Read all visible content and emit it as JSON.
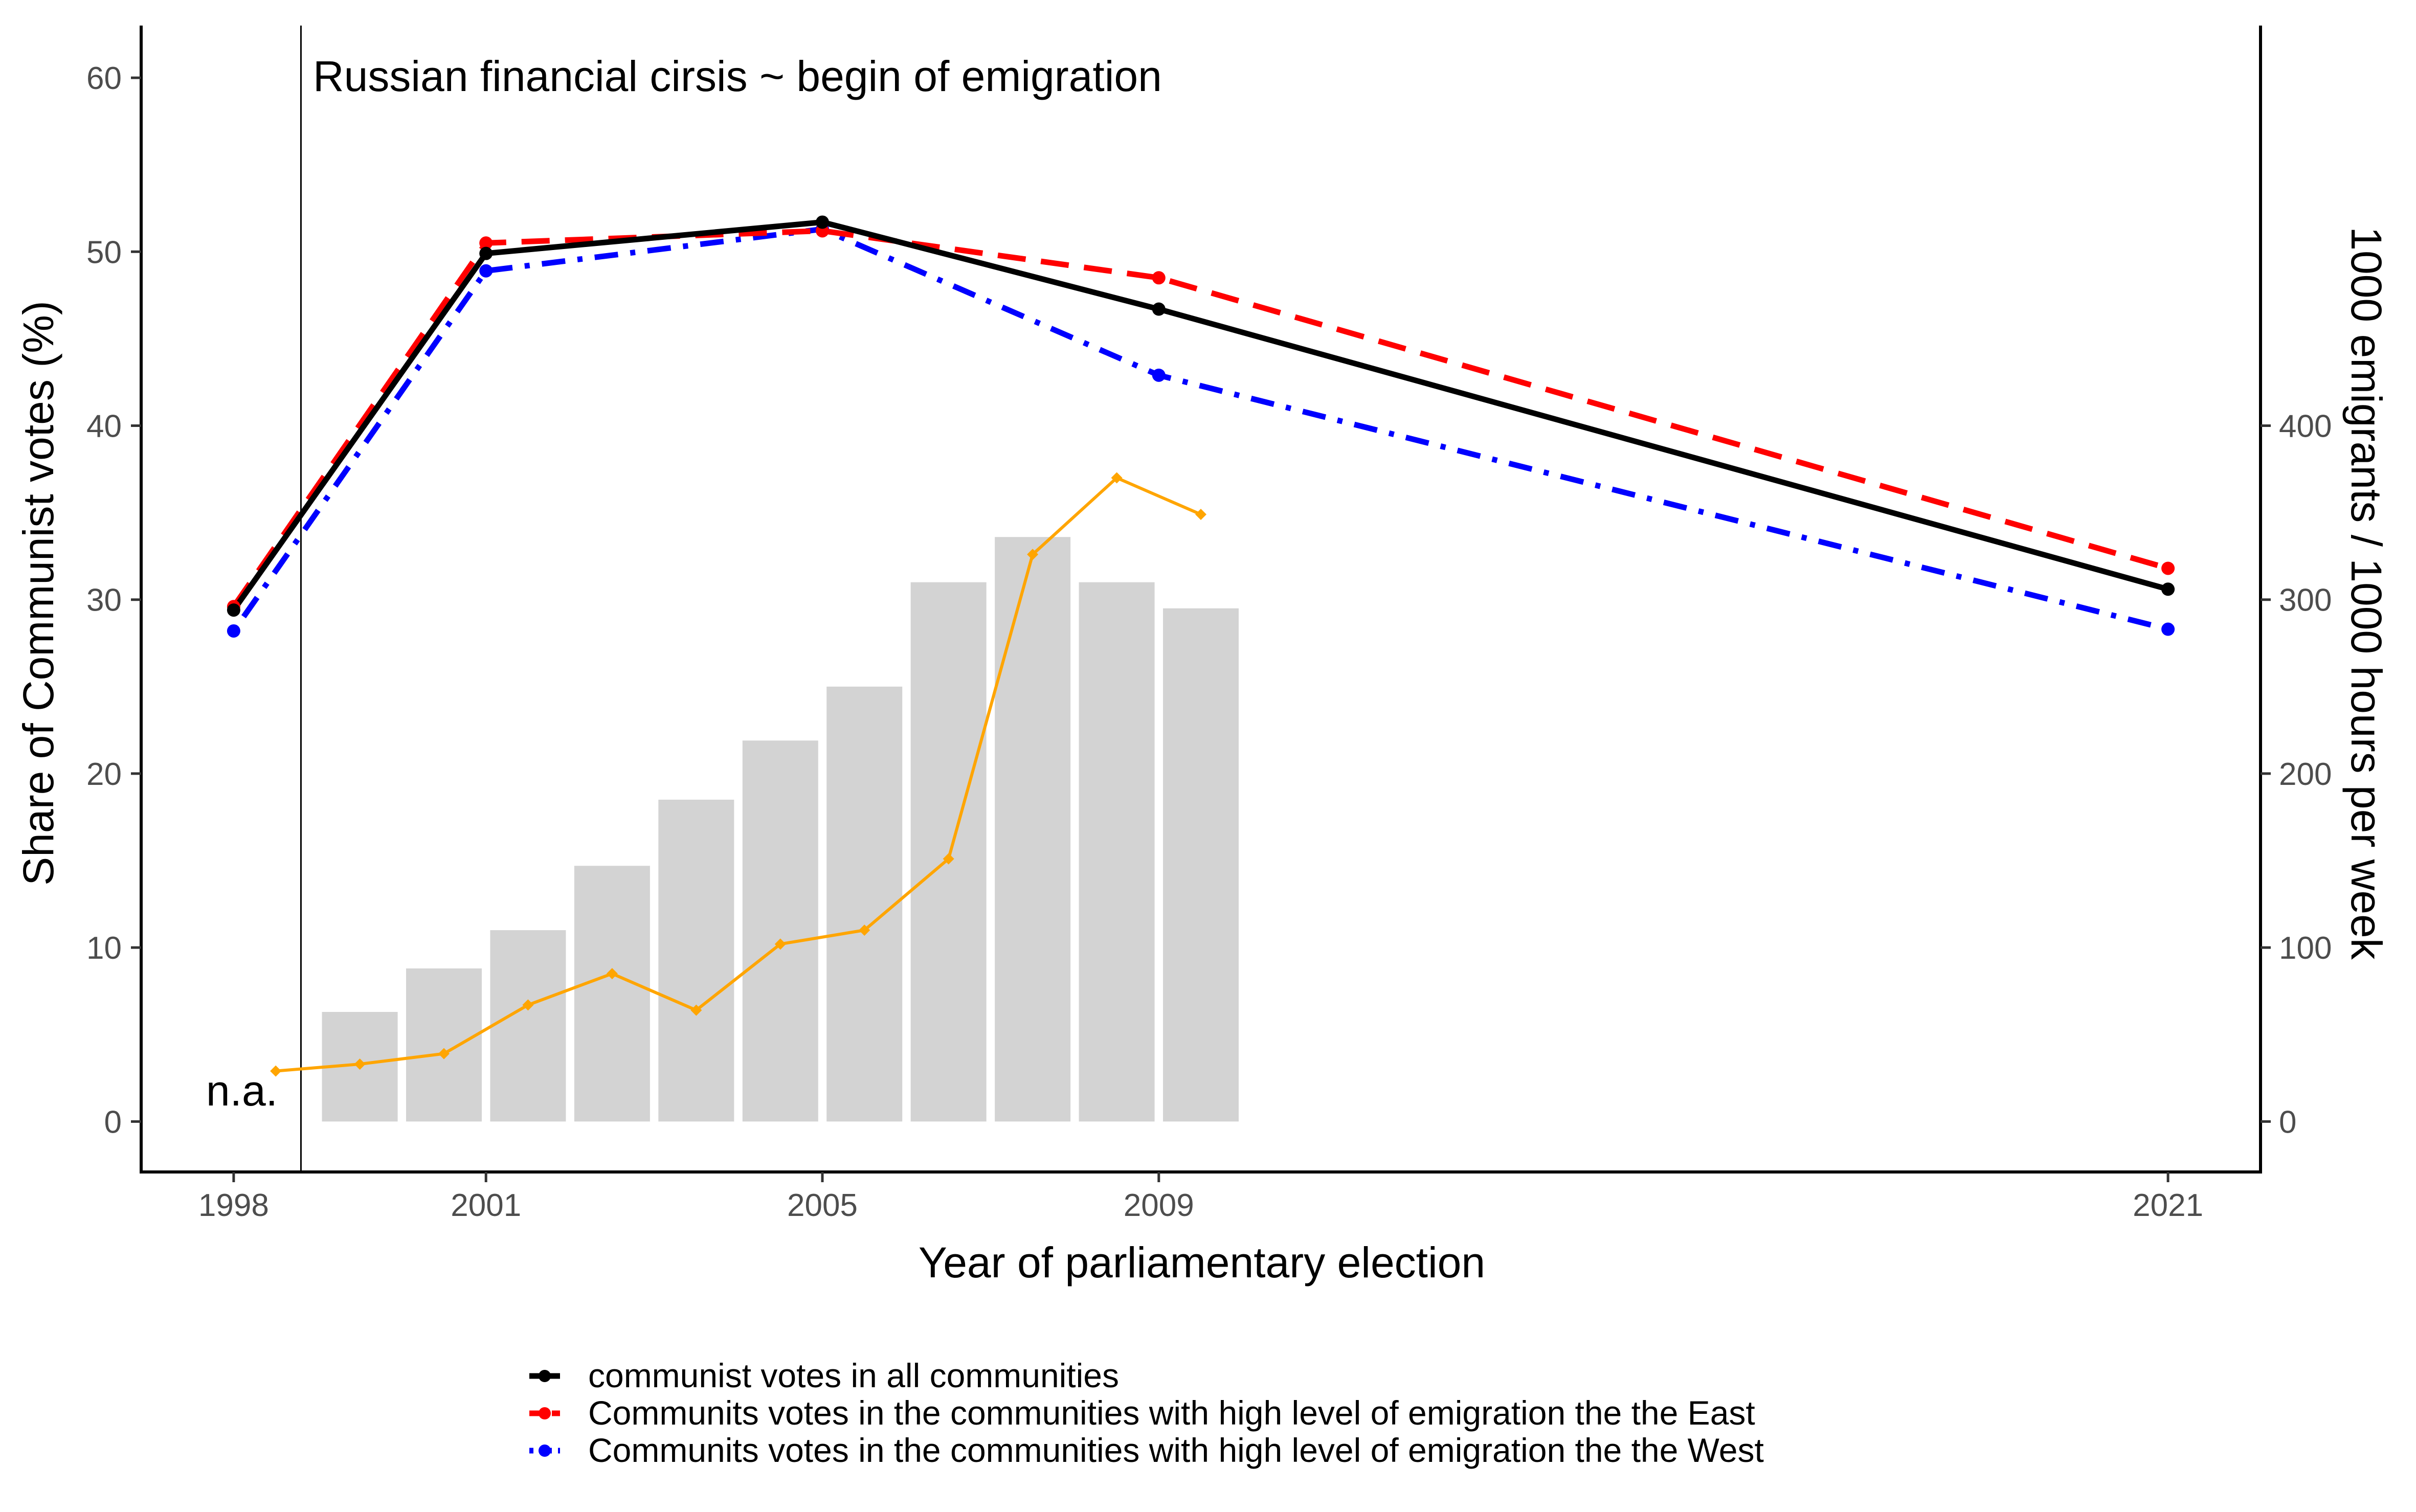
{
  "chart_data": {
    "type": "line",
    "xlabel": "Year of parliamentary election",
    "ylabel": "Share of Communist votes (%)",
    "y2label": "1000 emigrants / 1000 hours per week",
    "x_ticks": [
      "1998",
      "2001",
      "2005",
      "2009",
      "2021"
    ],
    "y_ticks": [
      "0",
      "10",
      "20",
      "30",
      "40",
      "50",
      "60"
    ],
    "y2_ticks": [
      "0",
      "100",
      "200",
      "300",
      "400"
    ],
    "xlim": [
      1996.9,
      2022.1
    ],
    "ylim": [
      -2.9,
      63
    ],
    "y2lim": [
      -29,
      630
    ],
    "grid": false,
    "legend_position": "bottom",
    "series": [
      {
        "name": "communist votes in all communities",
        "style": "solid",
        "color": "#000000",
        "x": [
          1998,
          2001,
          2005,
          2009,
          2021
        ],
        "values": [
          29.4,
          49.9,
          51.7,
          46.7,
          30.6
        ]
      },
      {
        "name": "Communits votes in the communities with high level of emigration the the East",
        "style": "dashed",
        "color": "#ff0000",
        "x": [
          1998,
          2001,
          2005,
          2009,
          2021
        ],
        "values": [
          29.6,
          50.5,
          51.2,
          48.5,
          31.8
        ]
      },
      {
        "name": "Communits votes in the communities with high level of emigration the the West",
        "style": "dotdash",
        "color": "#0000ff",
        "x": [
          1998,
          2001,
          2005,
          2009,
          2021
        ],
        "values": [
          28.2,
          48.9,
          51.3,
          42.9,
          28.3
        ]
      }
    ],
    "bar_series": {
      "axis": "secondary",
      "color": "#d3d3d3",
      "x": [
        1999.5,
        2000.5,
        2001.5,
        2002.5,
        2003.5,
        2004.5,
        2005.5,
        2006.5,
        2007.5,
        2008.5,
        2009.5
      ],
      "values": [
        63,
        88,
        110,
        147,
        185,
        219,
        250,
        310,
        336,
        310,
        295
      ]
    },
    "orange_series": {
      "axis": "secondary",
      "color": "#ffa500",
      "x": [
        1998.5,
        1999.5,
        2000.5,
        2001.5,
        2002.5,
        2003.5,
        2004.5,
        2005.5,
        2006.5,
        2007.5,
        2008.5,
        2009.5
      ],
      "values": [
        29,
        33,
        39,
        67,
        85,
        64,
        102,
        110,
        151,
        326,
        370,
        349
      ]
    },
    "vline": {
      "x": 1998.8,
      "color": "#000000"
    },
    "annotations": [
      {
        "text": "Russian financial cirsis ~ begin of emigration",
        "x": 1998.9,
        "y": 60.5
      },
      {
        "text": "n.a.",
        "x": 1998.5,
        "y": 1.8
      }
    ]
  }
}
